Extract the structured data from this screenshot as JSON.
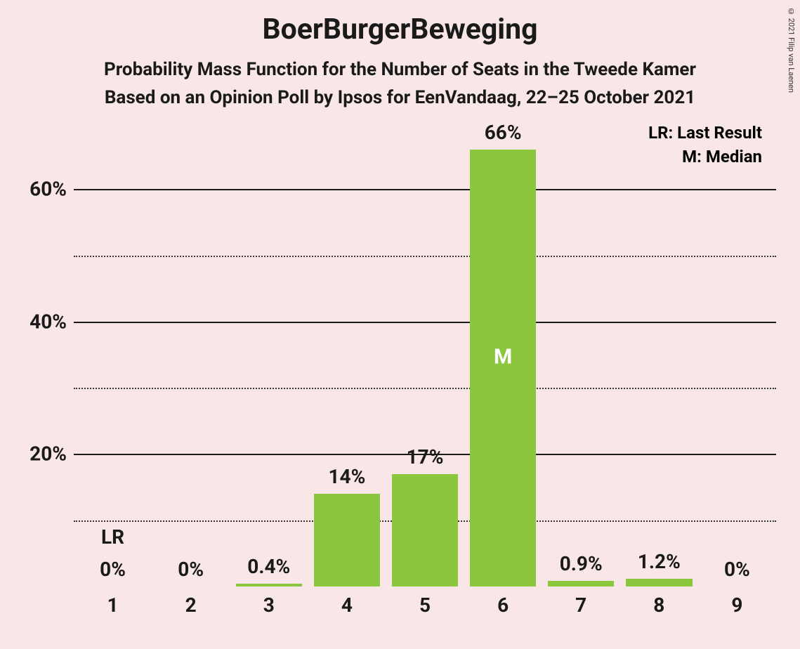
{
  "title": "BoerBurgerBeweging",
  "subtitle1": "Probability Mass Function for the Number of Seats in the Tweede Kamer",
  "subtitle2": "Based on an Opinion Poll by Ipsos for EenVandaag, 22–25 October 2021",
  "title_fontsize": 41,
  "subtitle_fontsize": 26,
  "title_color": "#1a1a1a",
  "copyright": "© 2021 Filip van Laenen",
  "legend": {
    "lr": "LR: Last Result",
    "m": "M: Median",
    "fontsize": 24
  },
  "chart": {
    "type": "bar",
    "background_color": "#f9e6e6",
    "bar_color": "#8cc63f",
    "text_color": "#1a1a1a",
    "bar_width_ratio": 0.85,
    "categories": [
      "1",
      "2",
      "3",
      "4",
      "5",
      "6",
      "7",
      "8",
      "9"
    ],
    "values": [
      0,
      0,
      0.4,
      14,
      17,
      66,
      0.9,
      1.2,
      0
    ],
    "value_labels": [
      "0%",
      "0%",
      "0.4%",
      "14%",
      "17%",
      "66%",
      "0.9%",
      "1.2%",
      "0%"
    ],
    "ylim": [
      0,
      70
    ],
    "y_ticks_major": [
      20,
      40,
      60
    ],
    "y_ticks_minor": [
      10,
      30,
      50
    ],
    "y_tick_labels": {
      "20": "20%",
      "40": "40%",
      "60": "60%"
    },
    "x_label_fontsize": 28,
    "y_label_fontsize": 28,
    "bar_label_fontsize": 28,
    "lr_index": 0,
    "lr_text": "LR",
    "median_index": 5,
    "median_text": "M",
    "median_fontsize": 30
  }
}
